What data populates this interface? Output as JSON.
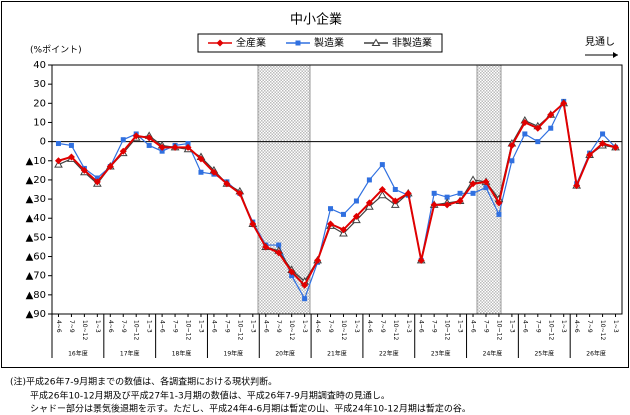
{
  "chart_data": {
    "type": "line",
    "title": "中小企業",
    "y_unit": "(%ポイント)",
    "forecast_label": "見通し",
    "categories": [
      "4~6",
      "7~9",
      "10~12",
      "1~3",
      "4~6",
      "7~9",
      "10~12",
      "1~3",
      "4~6",
      "7~9",
      "10~12",
      "1~3",
      "4~6",
      "7~9",
      "10~12",
      "1~3",
      "4~6",
      "7~9",
      "10~12",
      "1~3",
      "4~6",
      "7~9",
      "10~12",
      "1~3",
      "4~6",
      "7~9",
      "10~12",
      "1~3",
      "4~6",
      "7~9",
      "10~12",
      "1~3",
      "4~6",
      "7~9",
      "10~12",
      "1~3",
      "4~6",
      "7~9",
      "10~12",
      "1~3",
      "4~6",
      "7~9",
      "10~12",
      "1~3"
    ],
    "years": [
      "16年度",
      "17年度",
      "18年度",
      "19年度",
      "20年度",
      "21年度",
      "22年度",
      "23年度",
      "24年度",
      "25年度",
      "26年度"
    ],
    "series": [
      {
        "name": "全産業",
        "color": "#e00000",
        "marker": "diamond",
        "values": [
          -10,
          -8,
          -15,
          -21,
          -13,
          -5,
          3,
          2,
          -3,
          -3,
          -3,
          -9,
          -16,
          -22,
          -27,
          -43,
          -55,
          -58,
          -68,
          -75,
          -62,
          -43,
          -46,
          -39,
          -32,
          -25,
          -31,
          -27,
          -62,
          -33,
          -33,
          -31,
          -22,
          -21,
          -32,
          -2,
          10,
          7,
          14,
          20,
          -23,
          -7,
          -1,
          -3
        ]
      },
      {
        "name": "製造業",
        "color": "#3070e0",
        "marker": "square",
        "values": [
          -1,
          -2,
          -14,
          -19,
          -13,
          1,
          4,
          -2,
          -5,
          -2,
          -1,
          -16,
          -17,
          -21,
          -27,
          -42,
          -54,
          -54,
          -70,
          -82,
          -63,
          -35,
          -38,
          -31,
          -20,
          -12,
          -25,
          -28,
          -62,
          -27,
          -29,
          -27,
          -27,
          -24,
          -38,
          -10,
          4,
          0,
          7,
          21,
          -22,
          -6,
          4,
          -3
        ]
      },
      {
        "name": "非製造業",
        "color": "#404040",
        "marker": "triangle",
        "values": [
          -12,
          -9,
          -16,
          -22,
          -13,
          -6,
          2,
          3,
          -2,
          -3,
          -4,
          -8,
          -15,
          -22,
          -26,
          -43,
          -55,
          -57,
          -67,
          -73,
          -62,
          -44,
          -48,
          -41,
          -34,
          -28,
          -33,
          -27,
          -62,
          -33,
          -32,
          -31,
          -20,
          -21,
          -30,
          -1,
          11,
          8,
          14,
          20,
          -23,
          -7,
          -2,
          -3
        ]
      }
    ],
    "ylim": [
      -90,
      40
    ],
    "yticks": [
      40,
      30,
      20,
      10,
      0,
      {
        "value": -10,
        "label": "▲10"
      },
      {
        "value": -20,
        "label": "▲20"
      },
      {
        "value": -30,
        "label": "▲30"
      },
      {
        "value": -40,
        "label": "▲40"
      },
      {
        "value": -50,
        "label": "▲50"
      },
      {
        "value": -60,
        "label": "▲60"
      },
      {
        "value": -70,
        "label": "▲70"
      },
      {
        "value": -80,
        "label": "▲80"
      },
      {
        "value": -90,
        "label": "▲90"
      }
    ],
    "grid": false
  },
  "notes": [
    "(注)平成26年7-9月期までの数値は、各調査期における現状判断。",
    "平成26年10-12月期及び平成27年1-3月期の数値は、平成26年7-9月期調査時の見通し。",
    "シャドー部分は景気後退期を示す。ただし、平成24年4-6月期は暫定の山、平成24年10-12月期は暫定の谷。"
  ]
}
